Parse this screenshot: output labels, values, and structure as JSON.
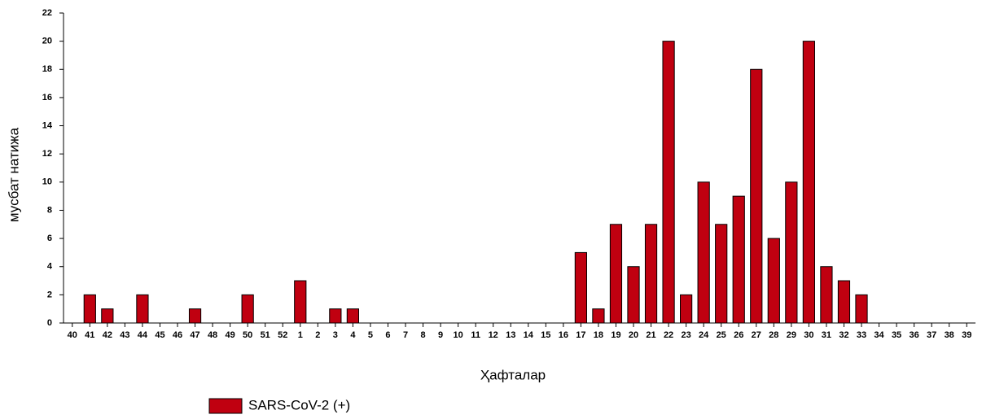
{
  "chart_data": {
    "type": "bar",
    "x_label": "Ҳафталар",
    "y_label": "мусбат натижа",
    "categories": [
      "40",
      "41",
      "42",
      "43",
      "44",
      "45",
      "46",
      "47",
      "48",
      "49",
      "50",
      "51",
      "52",
      "1",
      "2",
      "3",
      "4",
      "5",
      "6",
      "7",
      "8",
      "9",
      "10",
      "11",
      "12",
      "13",
      "14",
      "15",
      "16",
      "17",
      "18",
      "19",
      "20",
      "21",
      "22",
      "23",
      "24",
      "25",
      "26",
      "27",
      "28",
      "29",
      "30",
      "31",
      "32",
      "33",
      "34",
      "35",
      "36",
      "37",
      "38",
      "39"
    ],
    "series": [
      {
        "name": "SARS-CoV-2 (+)",
        "color": "#c00010",
        "values": [
          0,
          2,
          1,
          0,
          2,
          0,
          0,
          1,
          0,
          0,
          2,
          0,
          0,
          3,
          0,
          1,
          1,
          0,
          0,
          0,
          0,
          0,
          0,
          0,
          0,
          0,
          0,
          0,
          0,
          5,
          1,
          7,
          4,
          7,
          20,
          2,
          10,
          7,
          9,
          18,
          6,
          10,
          20,
          4,
          3,
          2,
          0,
          0,
          0,
          0,
          0,
          0
        ]
      }
    ],
    "ylim": [
      0,
      22
    ],
    "yticks": [
      0,
      2,
      4,
      6,
      8,
      10,
      12,
      14,
      16,
      18,
      20,
      22
    ],
    "grid": false
  }
}
